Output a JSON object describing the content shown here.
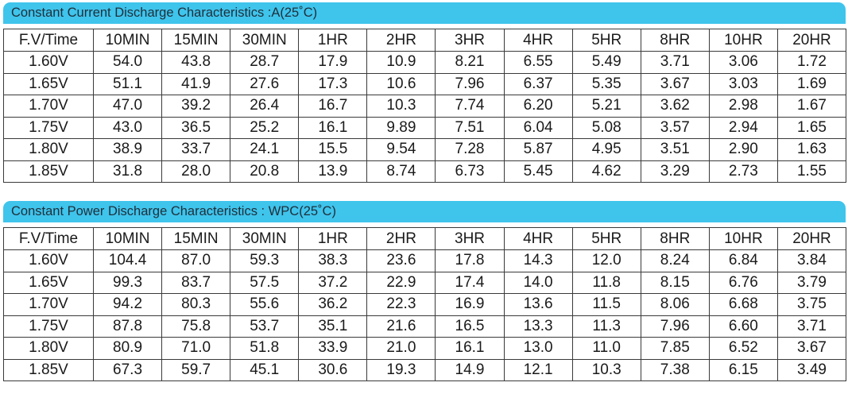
{
  "sections": [
    {
      "title": "Constant Current Discharge Characteristics :A(25˚C)",
      "headers": [
        "F.V/Time",
        "10MIN",
        "15MIN",
        "30MIN",
        "1HR",
        "2HR",
        "3HR",
        "4HR",
        "5HR",
        "8HR",
        "10HR",
        "20HR"
      ],
      "rows": [
        [
          "1.60V",
          "54.0",
          "43.8",
          "28.7",
          "17.9",
          "10.9",
          "8.21",
          "6.55",
          "5.49",
          "3.71",
          "3.06",
          "1.72"
        ],
        [
          "1.65V",
          "51.1",
          "41.9",
          "27.6",
          "17.3",
          "10.6",
          "7.96",
          "6.37",
          "5.35",
          "3.67",
          "3.03",
          "1.69"
        ],
        [
          "1.70V",
          "47.0",
          "39.2",
          "26.4",
          "16.7",
          "10.3",
          "7.74",
          "6.20",
          "5.21",
          "3.62",
          "2.98",
          "1.67"
        ],
        [
          "1.75V",
          "43.0",
          "36.5",
          "25.2",
          "16.1",
          "9.89",
          "7.51",
          "6.04",
          "5.08",
          "3.57",
          "2.94",
          "1.65"
        ],
        [
          "1.80V",
          "38.9",
          "33.7",
          "24.1",
          "15.5",
          "9.54",
          "7.28",
          "5.87",
          "4.95",
          "3.51",
          "2.90",
          "1.63"
        ],
        [
          "1.85V",
          "31.8",
          "28.0",
          "20.8",
          "13.9",
          "8.74",
          "6.73",
          "5.45",
          "4.62",
          "3.29",
          "2.73",
          "1.55"
        ]
      ]
    },
    {
      "title": "Constant Power Discharge Characteristics : WPC(25˚C)",
      "headers": [
        "F.V/Time",
        "10MIN",
        "15MIN",
        "30MIN",
        "1HR",
        "2HR",
        "3HR",
        "4HR",
        "5HR",
        "8HR",
        "10HR",
        "20HR"
      ],
      "rows": [
        [
          "1.60V",
          "104.4",
          "87.0",
          "59.3",
          "38.3",
          "23.6",
          "17.8",
          "14.3",
          "12.0",
          "8.24",
          "6.84",
          "3.84"
        ],
        [
          "1.65V",
          "99.3",
          "83.7",
          "57.5",
          "37.2",
          "22.9",
          "17.4",
          "14.0",
          "11.8",
          "8.15",
          "6.76",
          "3.79"
        ],
        [
          "1.70V",
          "94.2",
          "80.3",
          "55.6",
          "36.2",
          "22.3",
          "16.9",
          "13.6",
          "11.5",
          "8.06",
          "6.68",
          "3.75"
        ],
        [
          "1.75V",
          "87.8",
          "75.8",
          "53.7",
          "35.1",
          "21.6",
          "16.5",
          "13.3",
          "11.3",
          "7.96",
          "6.60",
          "3.71"
        ],
        [
          "1.80V",
          "80.9",
          "71.0",
          "51.8",
          "33.9",
          "21.0",
          "16.1",
          "13.0",
          "11.0",
          "7.85",
          "6.52",
          "3.67"
        ],
        [
          "1.85V",
          "67.3",
          "59.7",
          "45.1",
          "30.6",
          "19.3",
          "14.9",
          "12.1",
          "10.3",
          "7.38",
          "6.15",
          "3.49"
        ]
      ]
    }
  ],
  "colors": {
    "banner": "#3fc4ec",
    "border": "#3a3a3a"
  }
}
